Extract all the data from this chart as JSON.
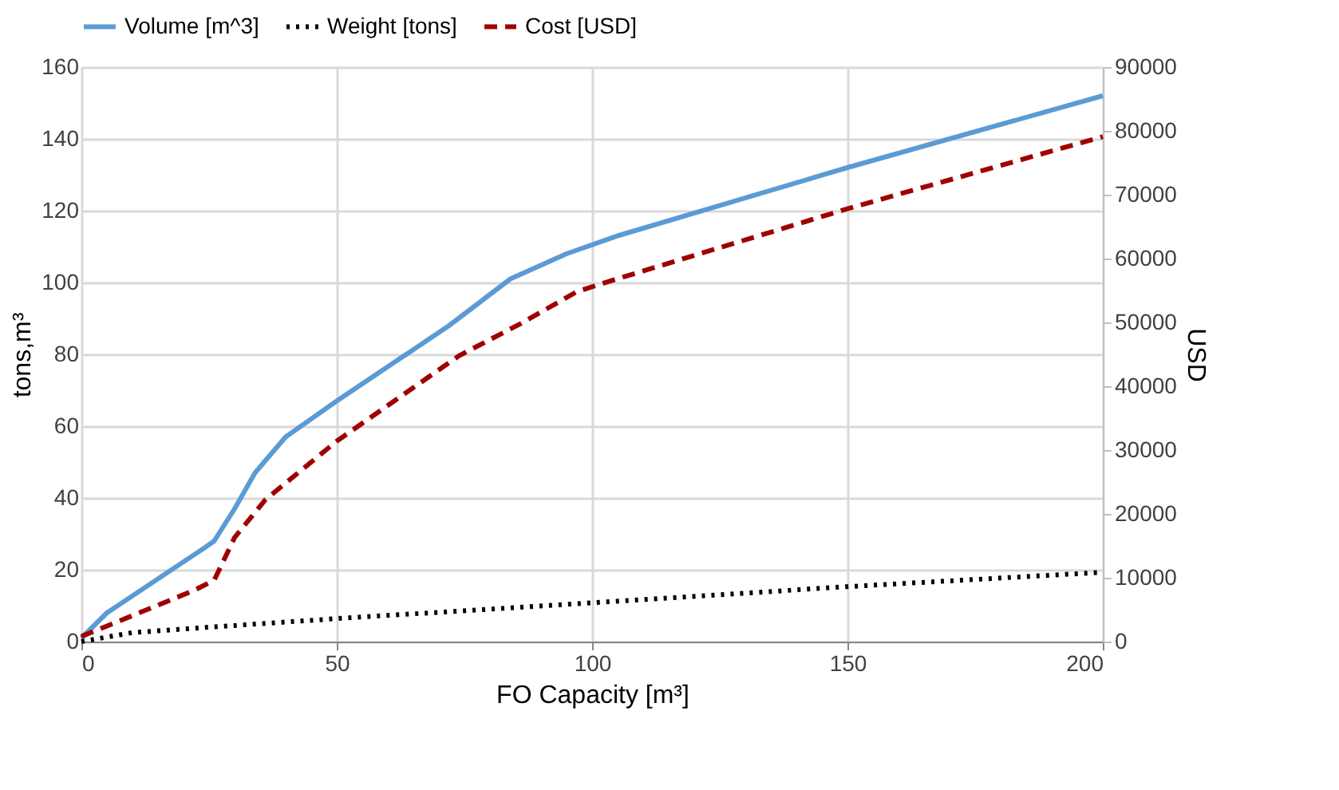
{
  "chart_data": {
    "type": "line",
    "xlabel": "FO Capacity [m³]",
    "ylabel": "tons,m³",
    "y2label": "USD",
    "xlim": [
      0,
      200
    ],
    "xticks": [
      0,
      50,
      100,
      150,
      200
    ],
    "ylim": [
      0,
      160
    ],
    "yticks": [
      0,
      20,
      40,
      60,
      80,
      100,
      120,
      140,
      160
    ],
    "y2lim": [
      0,
      90000
    ],
    "y2ticks": [
      0,
      10000,
      20000,
      30000,
      40000,
      50000,
      60000,
      70000,
      80000,
      90000
    ],
    "grid": true,
    "legend": "top",
    "marker": "none",
    "series": [
      {
        "name": "Volume [m^3]",
        "color": "#5b9bd5",
        "line_style": "solid",
        "x": [
          0,
          5,
          24,
          26,
          30,
          34,
          40,
          50,
          72,
          84,
          95,
          105,
          150,
          200
        ],
        "values": [
          1,
          8,
          26,
          28,
          37,
          47,
          57,
          67,
          88,
          101,
          108,
          113,
          132,
          152
        ]
      },
      {
        "name": "Weight [tons]",
        "color": "#000000",
        "line_style": "dotted",
        "x": [
          0,
          10,
          25,
          50,
          100,
          150,
          200
        ],
        "values": [
          0,
          2.5,
          4,
          6.4,
          10.8,
          15.3,
          19.3
        ]
      },
      {
        "name": "Cost [USD]",
        "color": "#a00000",
        "line_style": "dashed",
        "axis": "y2",
        "x": [
          0,
          22,
          26,
          30,
          36,
          50,
          74,
          86,
          97,
          102,
          150,
          200
        ],
        "values": [
          800,
          8000,
          9600,
          16300,
          22200,
          31400,
          44800,
          49800,
          54800,
          56100,
          67800,
          79100
        ]
      }
    ]
  }
}
